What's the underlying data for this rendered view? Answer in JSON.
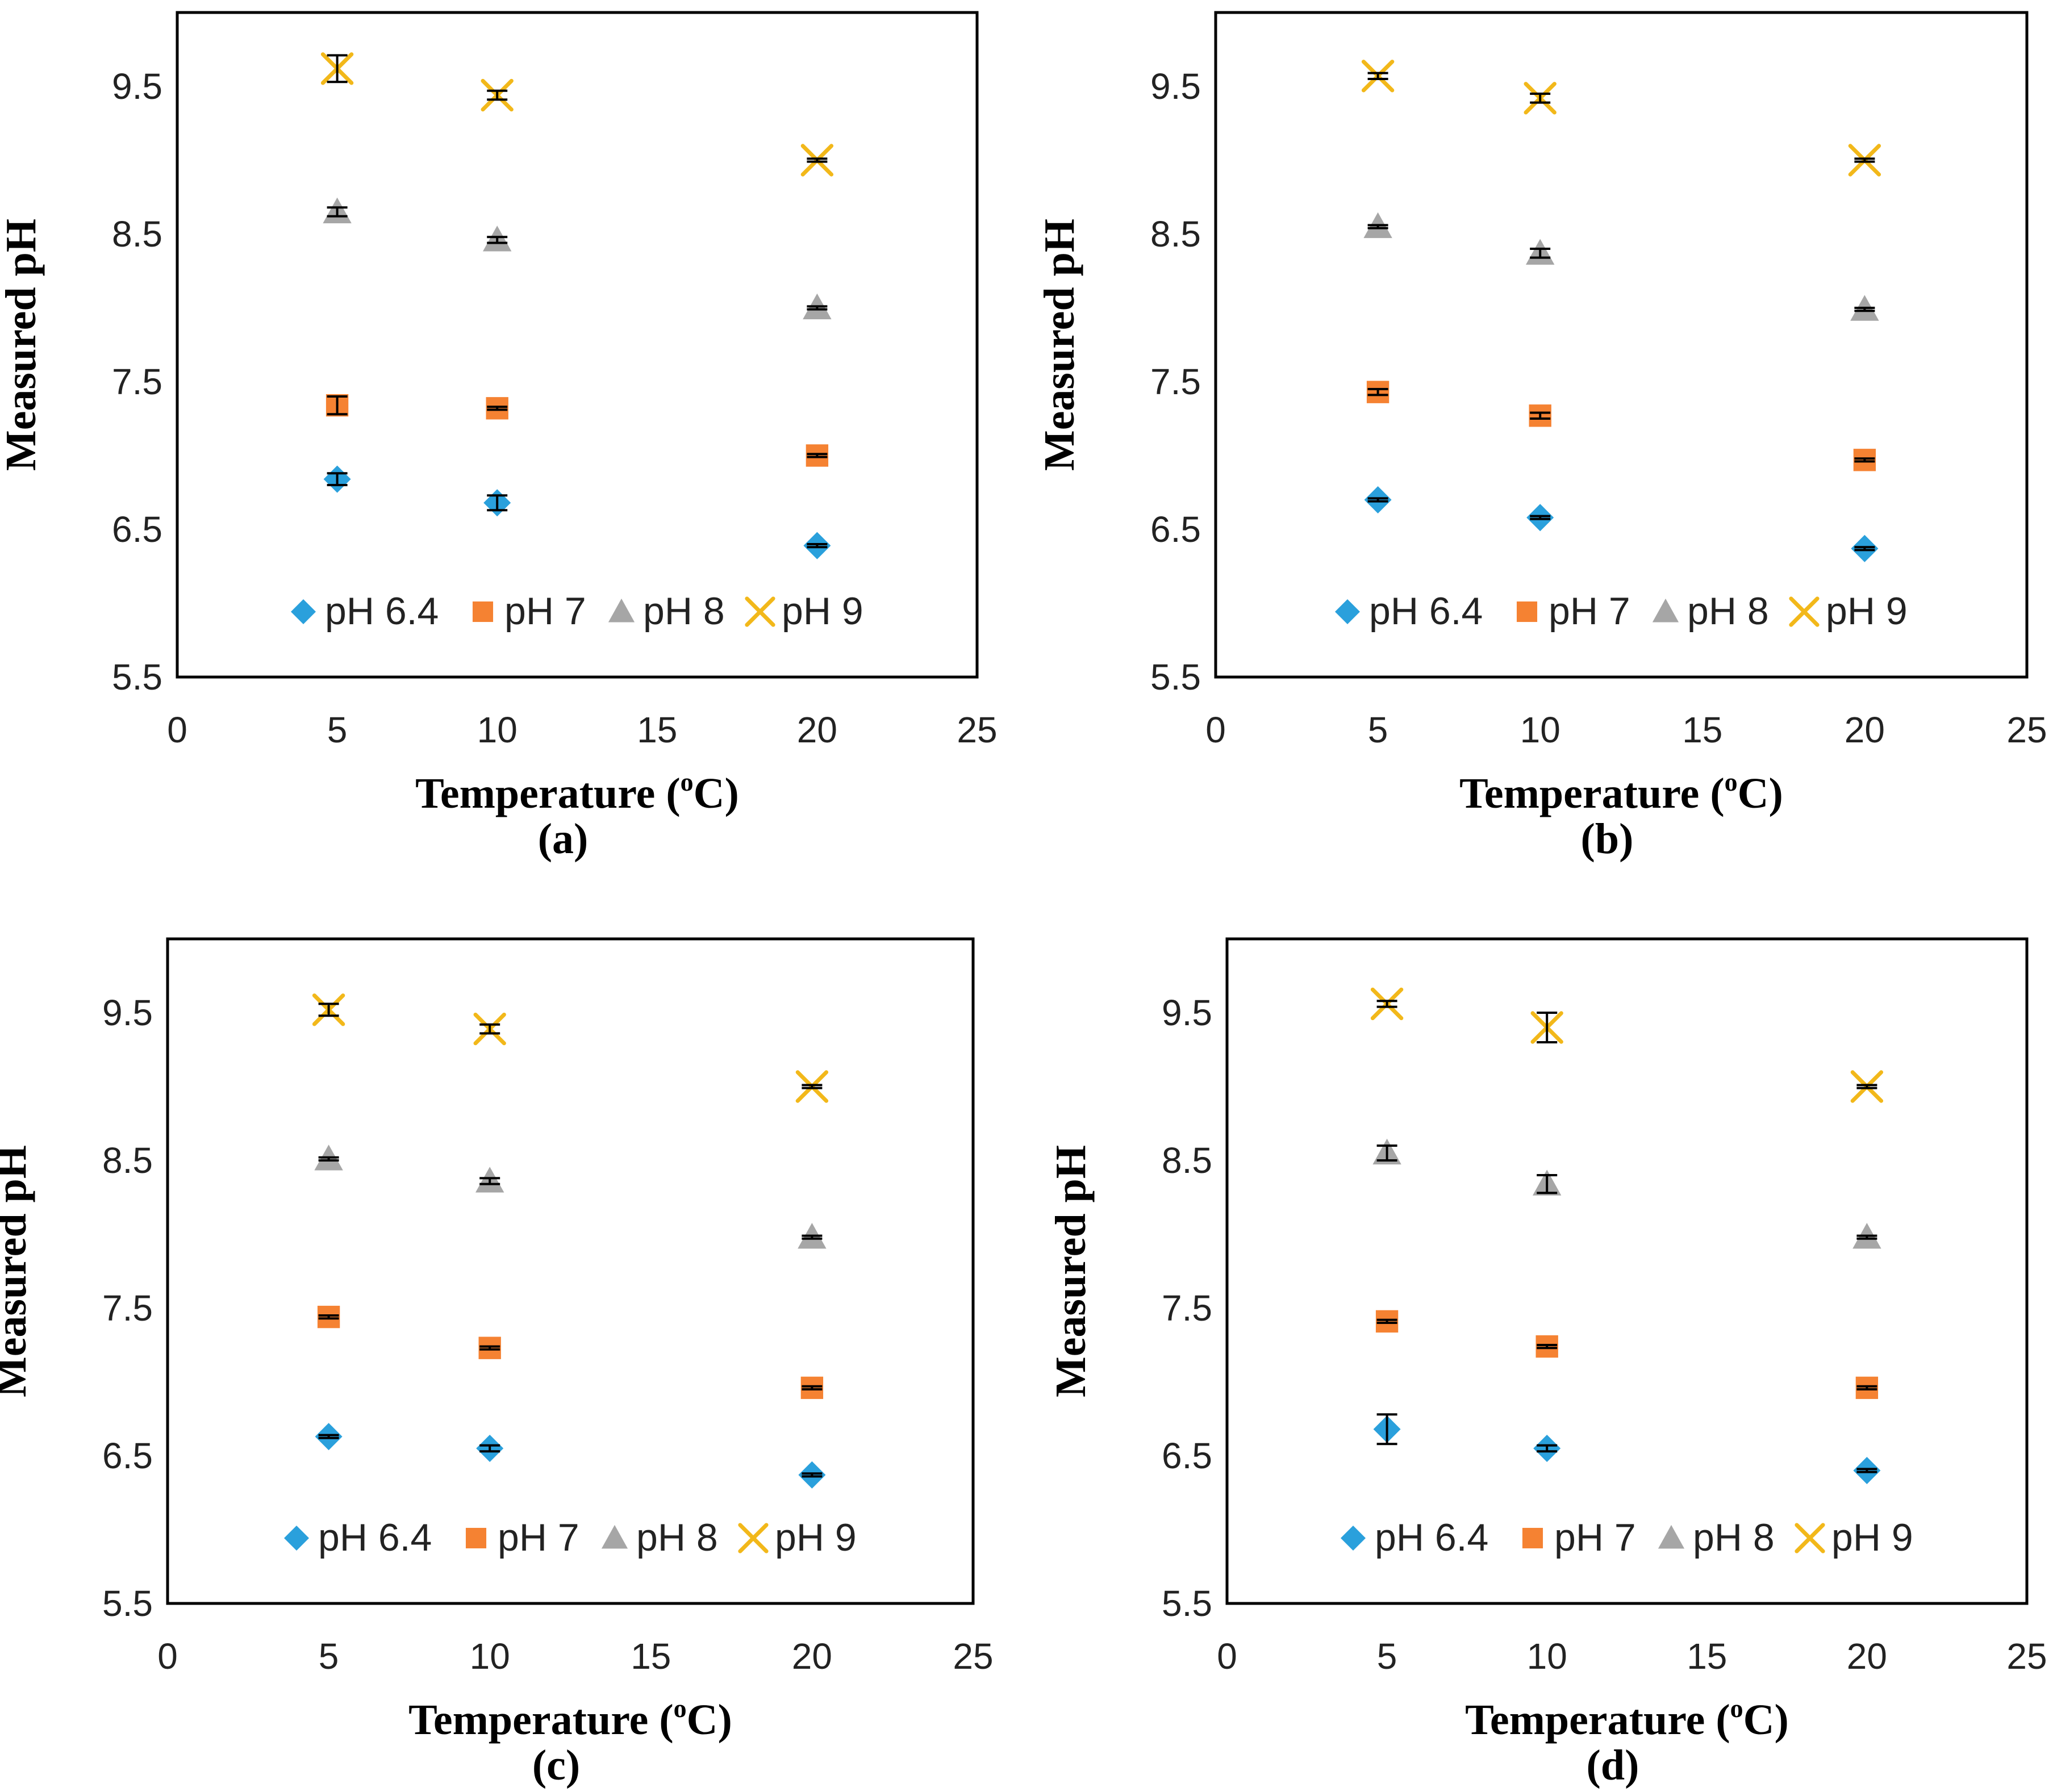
{
  "colors": {
    "pH 6.4": "#2aa0dc",
    "pH 7": "#f58232",
    "pH 8": "#a6a6a6",
    "pH 9": "#f2b81a",
    "errorbar": "#000000",
    "frame": "#000000"
  },
  "chart_data": [
    {
      "type": "scatter",
      "panel_label": "(a)",
      "xlabel_prefix": "Temperature (",
      "xlabel_sup": "o",
      "xlabel_suffix": "C)",
      "ylabel": "Measured pH",
      "xlim": [
        0,
        25
      ],
      "ylim": [
        5.5,
        10.0
      ],
      "xticks": [
        "0",
        "5",
        "10",
        "15",
        "20",
        "25"
      ],
      "yticks": [
        "5.5",
        "6.5",
        "7.5",
        "8.5",
        "9.5"
      ],
      "legend": [
        "pH 6.4",
        "pH 7",
        "pH 8",
        "pH 9"
      ],
      "x": [
        5,
        10,
        20
      ],
      "series": [
        {
          "name": "pH 6.4",
          "marker": "diamond",
          "values": [
            6.84,
            6.68,
            6.39
          ],
          "errors": [
            0.04,
            0.05,
            0.01
          ]
        },
        {
          "name": "pH 7",
          "marker": "square",
          "values": [
            7.34,
            7.32,
            7.0
          ],
          "errors": [
            0.06,
            0.01,
            0.01
          ]
        },
        {
          "name": "pH 8",
          "marker": "triangle",
          "values": [
            8.65,
            8.46,
            8.0
          ],
          "errors": [
            0.03,
            0.02,
            0.01
          ]
        },
        {
          "name": "pH 9",
          "marker": "x",
          "values": [
            9.62,
            9.44,
            9.0
          ],
          "errors": [
            0.09,
            0.03,
            0.01
          ]
        }
      ]
    },
    {
      "type": "scatter",
      "panel_label": "(b)",
      "xlabel_prefix": "Temperature (",
      "xlabel_sup": "o",
      "xlabel_suffix": "C)",
      "ylabel": "Measured pH",
      "xlim": [
        0,
        25
      ],
      "ylim": [
        5.5,
        10.0
      ],
      "xticks": [
        "0",
        "5",
        "10",
        "15",
        "20",
        "25"
      ],
      "yticks": [
        "5.5",
        "6.5",
        "7.5",
        "8.5",
        "9.5"
      ],
      "legend": [
        "pH 6.4",
        "pH 7",
        "pH 8",
        "pH 9"
      ],
      "x": [
        5,
        10,
        20
      ],
      "series": [
        {
          "name": "pH 6.4",
          "marker": "diamond",
          "values": [
            6.7,
            6.58,
            6.37
          ],
          "errors": [
            0.01,
            0.01,
            0.01
          ]
        },
        {
          "name": "pH 7",
          "marker": "square",
          "values": [
            7.43,
            7.27,
            6.97
          ],
          "errors": [
            0.02,
            0.02,
            0.01
          ]
        },
        {
          "name": "pH 8",
          "marker": "triangle",
          "values": [
            8.55,
            8.37,
            7.99
          ],
          "errors": [
            0.01,
            0.03,
            0.01
          ]
        },
        {
          "name": "pH 9",
          "marker": "x",
          "values": [
            9.57,
            9.42,
            9.0
          ],
          "errors": [
            0.02,
            0.03,
            0.01
          ]
        }
      ]
    },
    {
      "type": "scatter",
      "panel_label": "(c)",
      "xlabel_prefix": "Temperature (",
      "xlabel_sup": "o",
      "xlabel_suffix": "C)",
      "ylabel": "Measured pH",
      "xlim": [
        0,
        25
      ],
      "ylim": [
        5.5,
        10.0
      ],
      "xticks": [
        "0",
        "5",
        "10",
        "15",
        "20",
        "25"
      ],
      "yticks": [
        "5.5",
        "6.5",
        "7.5",
        "8.5",
        "9.5"
      ],
      "legend": [
        "pH 6.4",
        "pH 7",
        "pH 8",
        "pH 9"
      ],
      "x": [
        5,
        10,
        20
      ],
      "series": [
        {
          "name": "pH 6.4",
          "marker": "diamond",
          "values": [
            6.63,
            6.55,
            6.37
          ],
          "errors": [
            0.01,
            0.02,
            0.01
          ]
        },
        {
          "name": "pH 7",
          "marker": "square",
          "values": [
            7.44,
            7.23,
            6.96
          ],
          "errors": [
            0.01,
            0.01,
            0.01
          ]
        },
        {
          "name": "pH 8",
          "marker": "triangle",
          "values": [
            8.51,
            8.36,
            7.98
          ],
          "errors": [
            0.01,
            0.02,
            0.01
          ]
        },
        {
          "name": "pH 9",
          "marker": "x",
          "values": [
            9.52,
            9.39,
            9.0
          ],
          "errors": [
            0.04,
            0.03,
            0.01
          ]
        }
      ]
    },
    {
      "type": "scatter",
      "panel_label": "(d)",
      "xlabel_prefix": "Temperature (",
      "xlabel_sup": "o",
      "xlabel_suffix": "C)",
      "ylabel": "Measured pH",
      "xlim": [
        0,
        25
      ],
      "ylim": [
        5.5,
        10.0
      ],
      "xticks": [
        "0",
        "5",
        "10",
        "15",
        "20",
        "25"
      ],
      "yticks": [
        "5.5",
        "6.5",
        "7.5",
        "8.5",
        "9.5"
      ],
      "legend": [
        "pH 6.4",
        "pH 7",
        "pH 8",
        "pH 9"
      ],
      "x": [
        5,
        10,
        20
      ],
      "series": [
        {
          "name": "pH 6.4",
          "marker": "diamond",
          "values": [
            6.68,
            6.55,
            6.4
          ],
          "errors": [
            0.1,
            0.02,
            0.01
          ]
        },
        {
          "name": "pH 7",
          "marker": "square",
          "values": [
            7.41,
            7.24,
            6.96
          ],
          "errors": [
            0.01,
            0.01,
            0.01
          ]
        },
        {
          "name": "pH 8",
          "marker": "triangle",
          "values": [
            8.55,
            8.34,
            7.98
          ],
          "errors": [
            0.05,
            0.06,
            0.01
          ]
        },
        {
          "name": "pH 9",
          "marker": "x",
          "values": [
            9.56,
            9.4,
            9.0
          ],
          "errors": [
            0.02,
            0.1,
            0.01
          ]
        }
      ]
    }
  ]
}
